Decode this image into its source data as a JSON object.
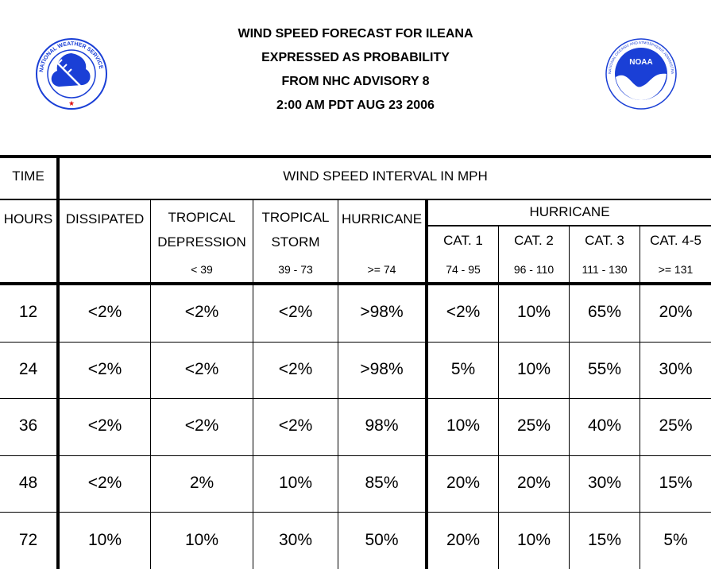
{
  "header": {
    "line1": "WIND SPEED FORECAST FOR ILEANA",
    "line2": "EXPRESSED AS PROBABILITY",
    "line3": "FROM NHC ADVISORY   8",
    "line4": "2:00 AM PDT AUG 23 2006"
  },
  "logos": {
    "nws": {
      "icon": "nws-logo-icon",
      "text": "NATIONAL WEATHER SERVICE",
      "color": "#1a3fd6"
    },
    "noaa": {
      "icon": "noaa-logo-icon",
      "text": "NOAA",
      "ring_text": "NATIONAL OCEANIC AND ATMOSPHERIC ADMINISTRATION · U.S. DEPARTMENT OF COMMERCE",
      "color": "#1a3fd6"
    }
  },
  "table": {
    "time_label": "TIME",
    "interval_label": "WIND SPEED INTERVAL IN MPH",
    "hours_label": "HOURS",
    "dissipated": "DISSIPATED",
    "td_line1": "TROPICAL",
    "td_line2": "DEPRESSION",
    "td_range": "< 39",
    "ts_line1": "TROPICAL",
    "ts_line2": "STORM",
    "ts_range": "39 - 73",
    "hurricane": "HURRICANE",
    "hurricane_range": ">= 74",
    "hurricane_group": "HURRICANE",
    "cat1": "CAT. 1",
    "cat1_range": "74 - 95",
    "cat2": "CAT. 2",
    "cat2_range": "96 - 110",
    "cat3": "CAT. 3",
    "cat3_range": "111 - 130",
    "cat45": "CAT. 4-5",
    "cat45_range": ">= 131",
    "rows": [
      [
        "12",
        "<2%",
        "<2%",
        "<2%",
        ">98%",
        "<2%",
        "10%",
        "65%",
        "20%"
      ],
      [
        "24",
        "<2%",
        "<2%",
        "<2%",
        ">98%",
        "5%",
        "10%",
        "55%",
        "30%"
      ],
      [
        "36",
        "<2%",
        "<2%",
        "<2%",
        "98%",
        "10%",
        "25%",
        "40%",
        "25%"
      ],
      [
        "48",
        "<2%",
        "2%",
        "10%",
        "85%",
        "20%",
        "20%",
        "30%",
        "15%"
      ],
      [
        "72",
        "10%",
        "10%",
        "30%",
        "50%",
        "20%",
        "10%",
        "15%",
        "5%"
      ]
    ]
  }
}
